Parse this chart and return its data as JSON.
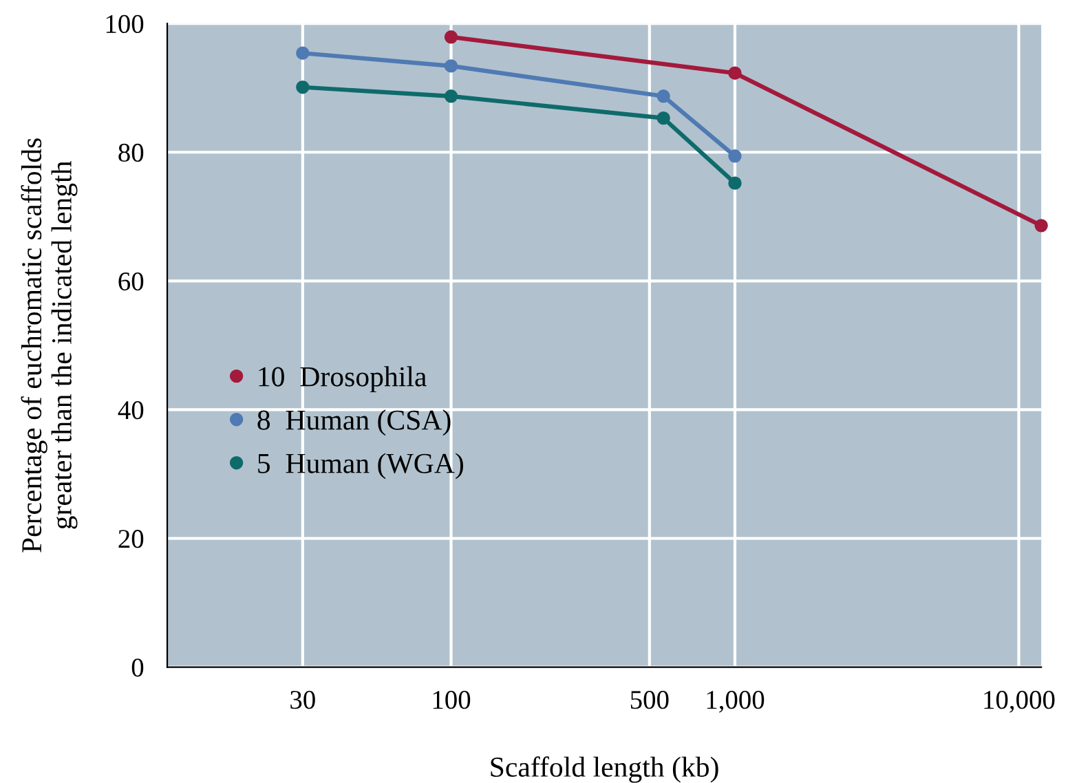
{
  "chart_data": {
    "type": "line",
    "xlabel": "Scaffold length (kb)",
    "ylabel": "Percentage of euchromatic scaffolds\ngreater than the indicated length",
    "log": "x",
    "xlim": [
      10,
      12000
    ],
    "xticks": [
      30,
      100,
      500,
      {
        "value": 1000,
        "label": "1,000"
      },
      {
        "value": 10000,
        "label": "10,000"
      }
    ],
    "ylim": [
      0,
      100
    ],
    "yticks": [
      0,
      20,
      40,
      60,
      80,
      100
    ],
    "grid": true,
    "marker": "circle",
    "line_style": "solid",
    "legend": "left",
    "series": [
      {
        "name": "10  Drosophila",
        "color": "#a31a3c",
        "x": [
          100,
          1000,
          12000
        ],
        "values": [
          97.9,
          92.3,
          68.6
        ]
      },
      {
        "name": "8  Human (CSA)",
        "color": "#4f7ab3",
        "x": [
          30,
          100,
          560,
          1000
        ],
        "values": [
          95.4,
          93.4,
          88.7,
          79.4
        ]
      },
      {
        "name": "5  Human (WGA)",
        "color": "#0f6b6b",
        "x": [
          30,
          100,
          560,
          1000
        ],
        "values": [
          90.1,
          88.7,
          85.3,
          75.2
        ]
      }
    ]
  }
}
